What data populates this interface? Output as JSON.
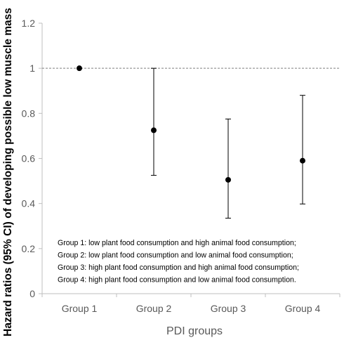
{
  "chart_data": {
    "type": "scatter",
    "title": "",
    "xlabel": "PDI groups",
    "ylabel": "Hazard ratios (95% CI) of developing possible low muscle mass",
    "categories": [
      "Group 1",
      "Group 2",
      "Group 3",
      "Group 4"
    ],
    "values": [
      1.0,
      0.725,
      0.505,
      0.59
    ],
    "ci_lower": [
      1.0,
      0.525,
      0.335,
      0.398
    ],
    "ci_upper": [
      1.0,
      1.0,
      0.775,
      0.88
    ],
    "ylim": [
      0,
      1.2
    ],
    "yticks": [
      "0",
      "0.2",
      "0.4",
      "0.6",
      "0.8",
      "1",
      "1.2"
    ],
    "reference_line": 1,
    "grid": false,
    "legend_notes": [
      "Group 1: low plant food consumption and high animal food consumption;",
      "Group 2: low plant food consumption and low animal food consumption;",
      "Group 3: high plant food consumption and high animal food consumption;",
      "Group 4: high plant food consumption and low animal food consumption."
    ],
    "colors": {
      "point": "#000000",
      "axis": "#bfbfbf",
      "reference": "#7f7f7f"
    }
  }
}
